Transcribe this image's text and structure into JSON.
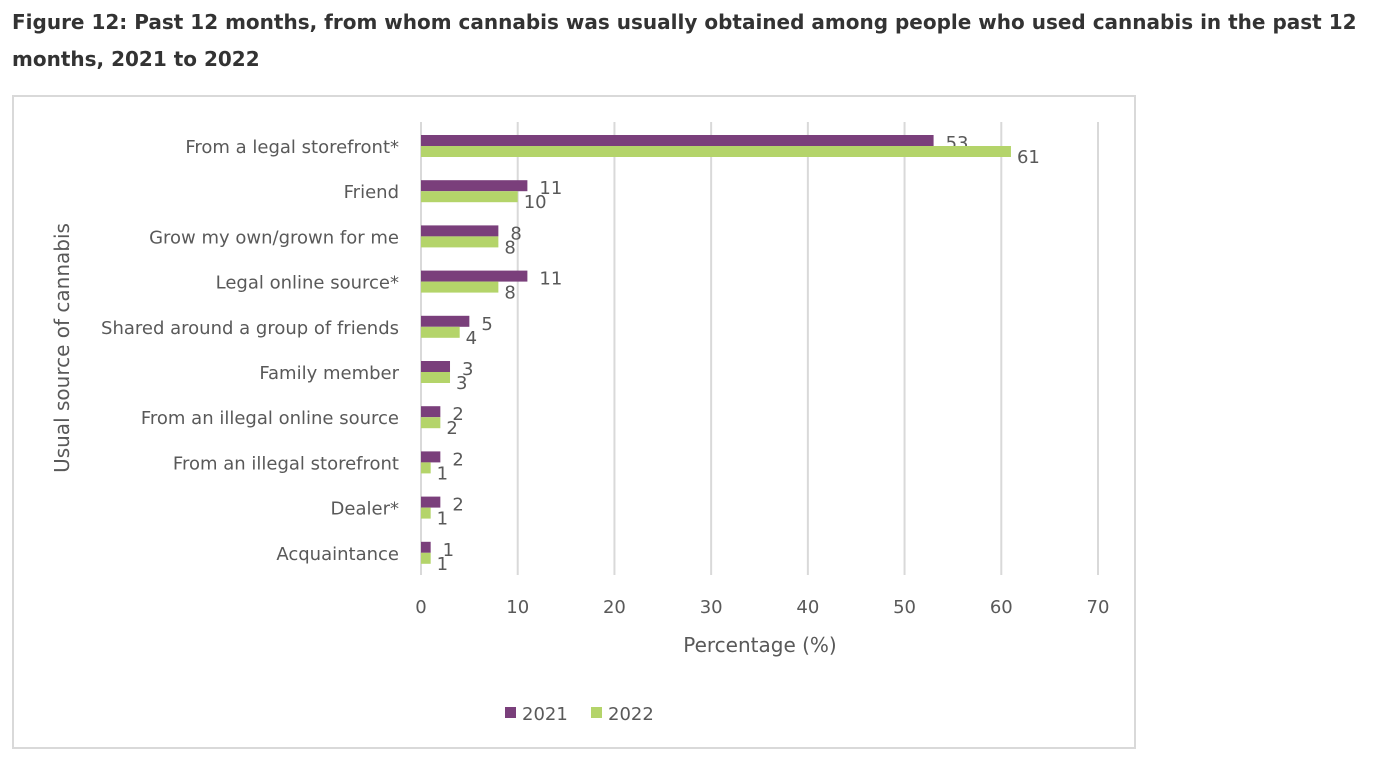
{
  "title": "Figure 12: Past 12 months, from whom cannabis was usually obtained among people who used cannabis in the past 12 months, 2021 to 2022",
  "chart_data": {
    "type": "bar",
    "orientation": "horizontal",
    "title": "Figure 12: Past 12 months, from whom cannabis was usually obtained among people who used cannabis in the past 12 months, 2021 to 2022",
    "xlabel": "Percentage (%)",
    "ylabel": "Usual source of cannabis",
    "xlim": [
      0,
      70
    ],
    "xticks": [
      0,
      10,
      20,
      30,
      40,
      50,
      60,
      70
    ],
    "grid": true,
    "legend": "bottom",
    "categories": [
      "From a legal storefront*",
      "Friend",
      "Grow my own/grown for me",
      "Legal online source*",
      "Shared around a group of friends",
      "Family member",
      "From an illegal online source",
      "From an illegal storefront",
      "Dealer*",
      "Acquaintance"
    ],
    "series": [
      {
        "name": "2021",
        "color": "#7a3f7b",
        "values": [
          53,
          11,
          8,
          11,
          5,
          3,
          2,
          2,
          2,
          1
        ]
      },
      {
        "name": "2022",
        "color": "#b4d46a",
        "values": [
          61,
          10,
          8,
          8,
          4,
          3,
          2,
          1,
          1,
          1
        ]
      }
    ]
  }
}
